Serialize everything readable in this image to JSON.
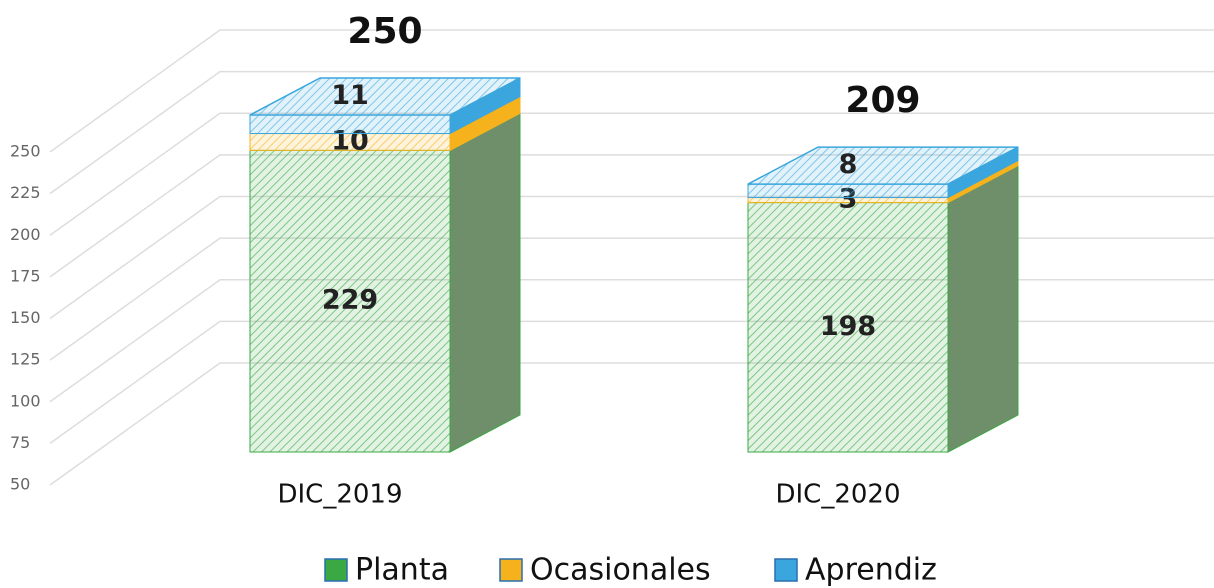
{
  "chart_data": {
    "type": "bar3d_stacked",
    "categories": [
      "DIC_2019",
      "DIC_2020"
    ],
    "series": [
      {
        "name": "Planta",
        "color": "#3aa843",
        "values": [
          229,
          198
        ]
      },
      {
        "name": "Ocasionales",
        "color": "#f5b21c",
        "values": [
          10,
          3
        ]
      },
      {
        "name": "Aprendiz",
        "color": "#3aa6dd",
        "values": [
          11,
          8
        ]
      }
    ],
    "totals": [
      250,
      209
    ],
    "ylim": [
      50,
      250
    ],
    "yticks": [
      50,
      75,
      100,
      125,
      150,
      175,
      200,
      225,
      250
    ],
    "grid": true
  }
}
